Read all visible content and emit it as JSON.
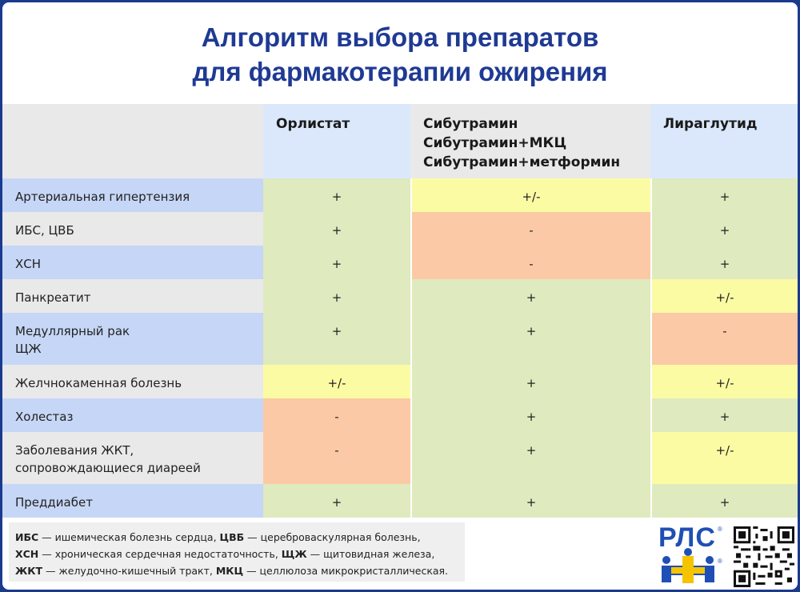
{
  "title": {
    "line1": "Алгоритм выбора препаратов",
    "line2": "для фармакотерапии ожирения"
  },
  "columns": {
    "col1": [
      "Орлистат"
    ],
    "col2": [
      "Сибутрамин",
      "Сибутрамин+МКЦ",
      "Сибутрамин+метформин"
    ],
    "col3": [
      "Лираглутид"
    ]
  },
  "rows": [
    {
      "label": [
        "Артериальная гипертензия"
      ],
      "values": [
        "+",
        "+/-",
        "+"
      ]
    },
    {
      "label": [
        "ИБС, ЦВБ"
      ],
      "values": [
        "+",
        "-",
        "+"
      ]
    },
    {
      "label": [
        "ХСН"
      ],
      "values": [
        "+",
        "-",
        "+"
      ]
    },
    {
      "label": [
        "Панкреатит"
      ],
      "values": [
        "+",
        "+",
        "+/-"
      ]
    },
    {
      "label": [
        "Медуллярный рак",
        "ЩЖ"
      ],
      "values": [
        "+",
        "+",
        "-"
      ]
    },
    {
      "label": [
        "Желчнокаменная болезнь"
      ],
      "values": [
        "+/-",
        "+",
        "+/-"
      ]
    },
    {
      "label": [
        "Холестаз"
      ],
      "values": [
        "-",
        "+",
        "+"
      ]
    },
    {
      "label": [
        "Заболевания ЖКТ,",
        "сопровождающиеся диареей"
      ],
      "values": [
        "-",
        "+",
        "+/-"
      ]
    },
    {
      "label": [
        "Преддиабет"
      ],
      "values": [
        "+",
        "+",
        "+"
      ]
    }
  ],
  "legend": {
    "l1": [
      {
        "b": "ИБС",
        "t": " — ишемическая болезнь сердца, "
      },
      {
        "b": "ЦВБ",
        "t": " — цереброваскулярная болезнь,"
      }
    ],
    "l2": [
      {
        "b": "ХСН",
        "t": " — хроническая сердечная недостаточность, "
      },
      {
        "b": "ЩЖ",
        "t": " — щитовидная железа,"
      }
    ],
    "l3": [
      {
        "b": "ЖКТ",
        "t": " — желудочно-кишечный тракт, "
      },
      {
        "b": "МКЦ",
        "t": " — целлюлоза микрокристаллическая."
      }
    ]
  },
  "logo": {
    "text": "РЛС",
    "reg": "®"
  },
  "colors": {
    "plus": "#dfeabf",
    "partial": "#fbfba4",
    "minus": "#fcc9a6",
    "title": "#1f3a93",
    "frame": "#1a3a8f"
  }
}
